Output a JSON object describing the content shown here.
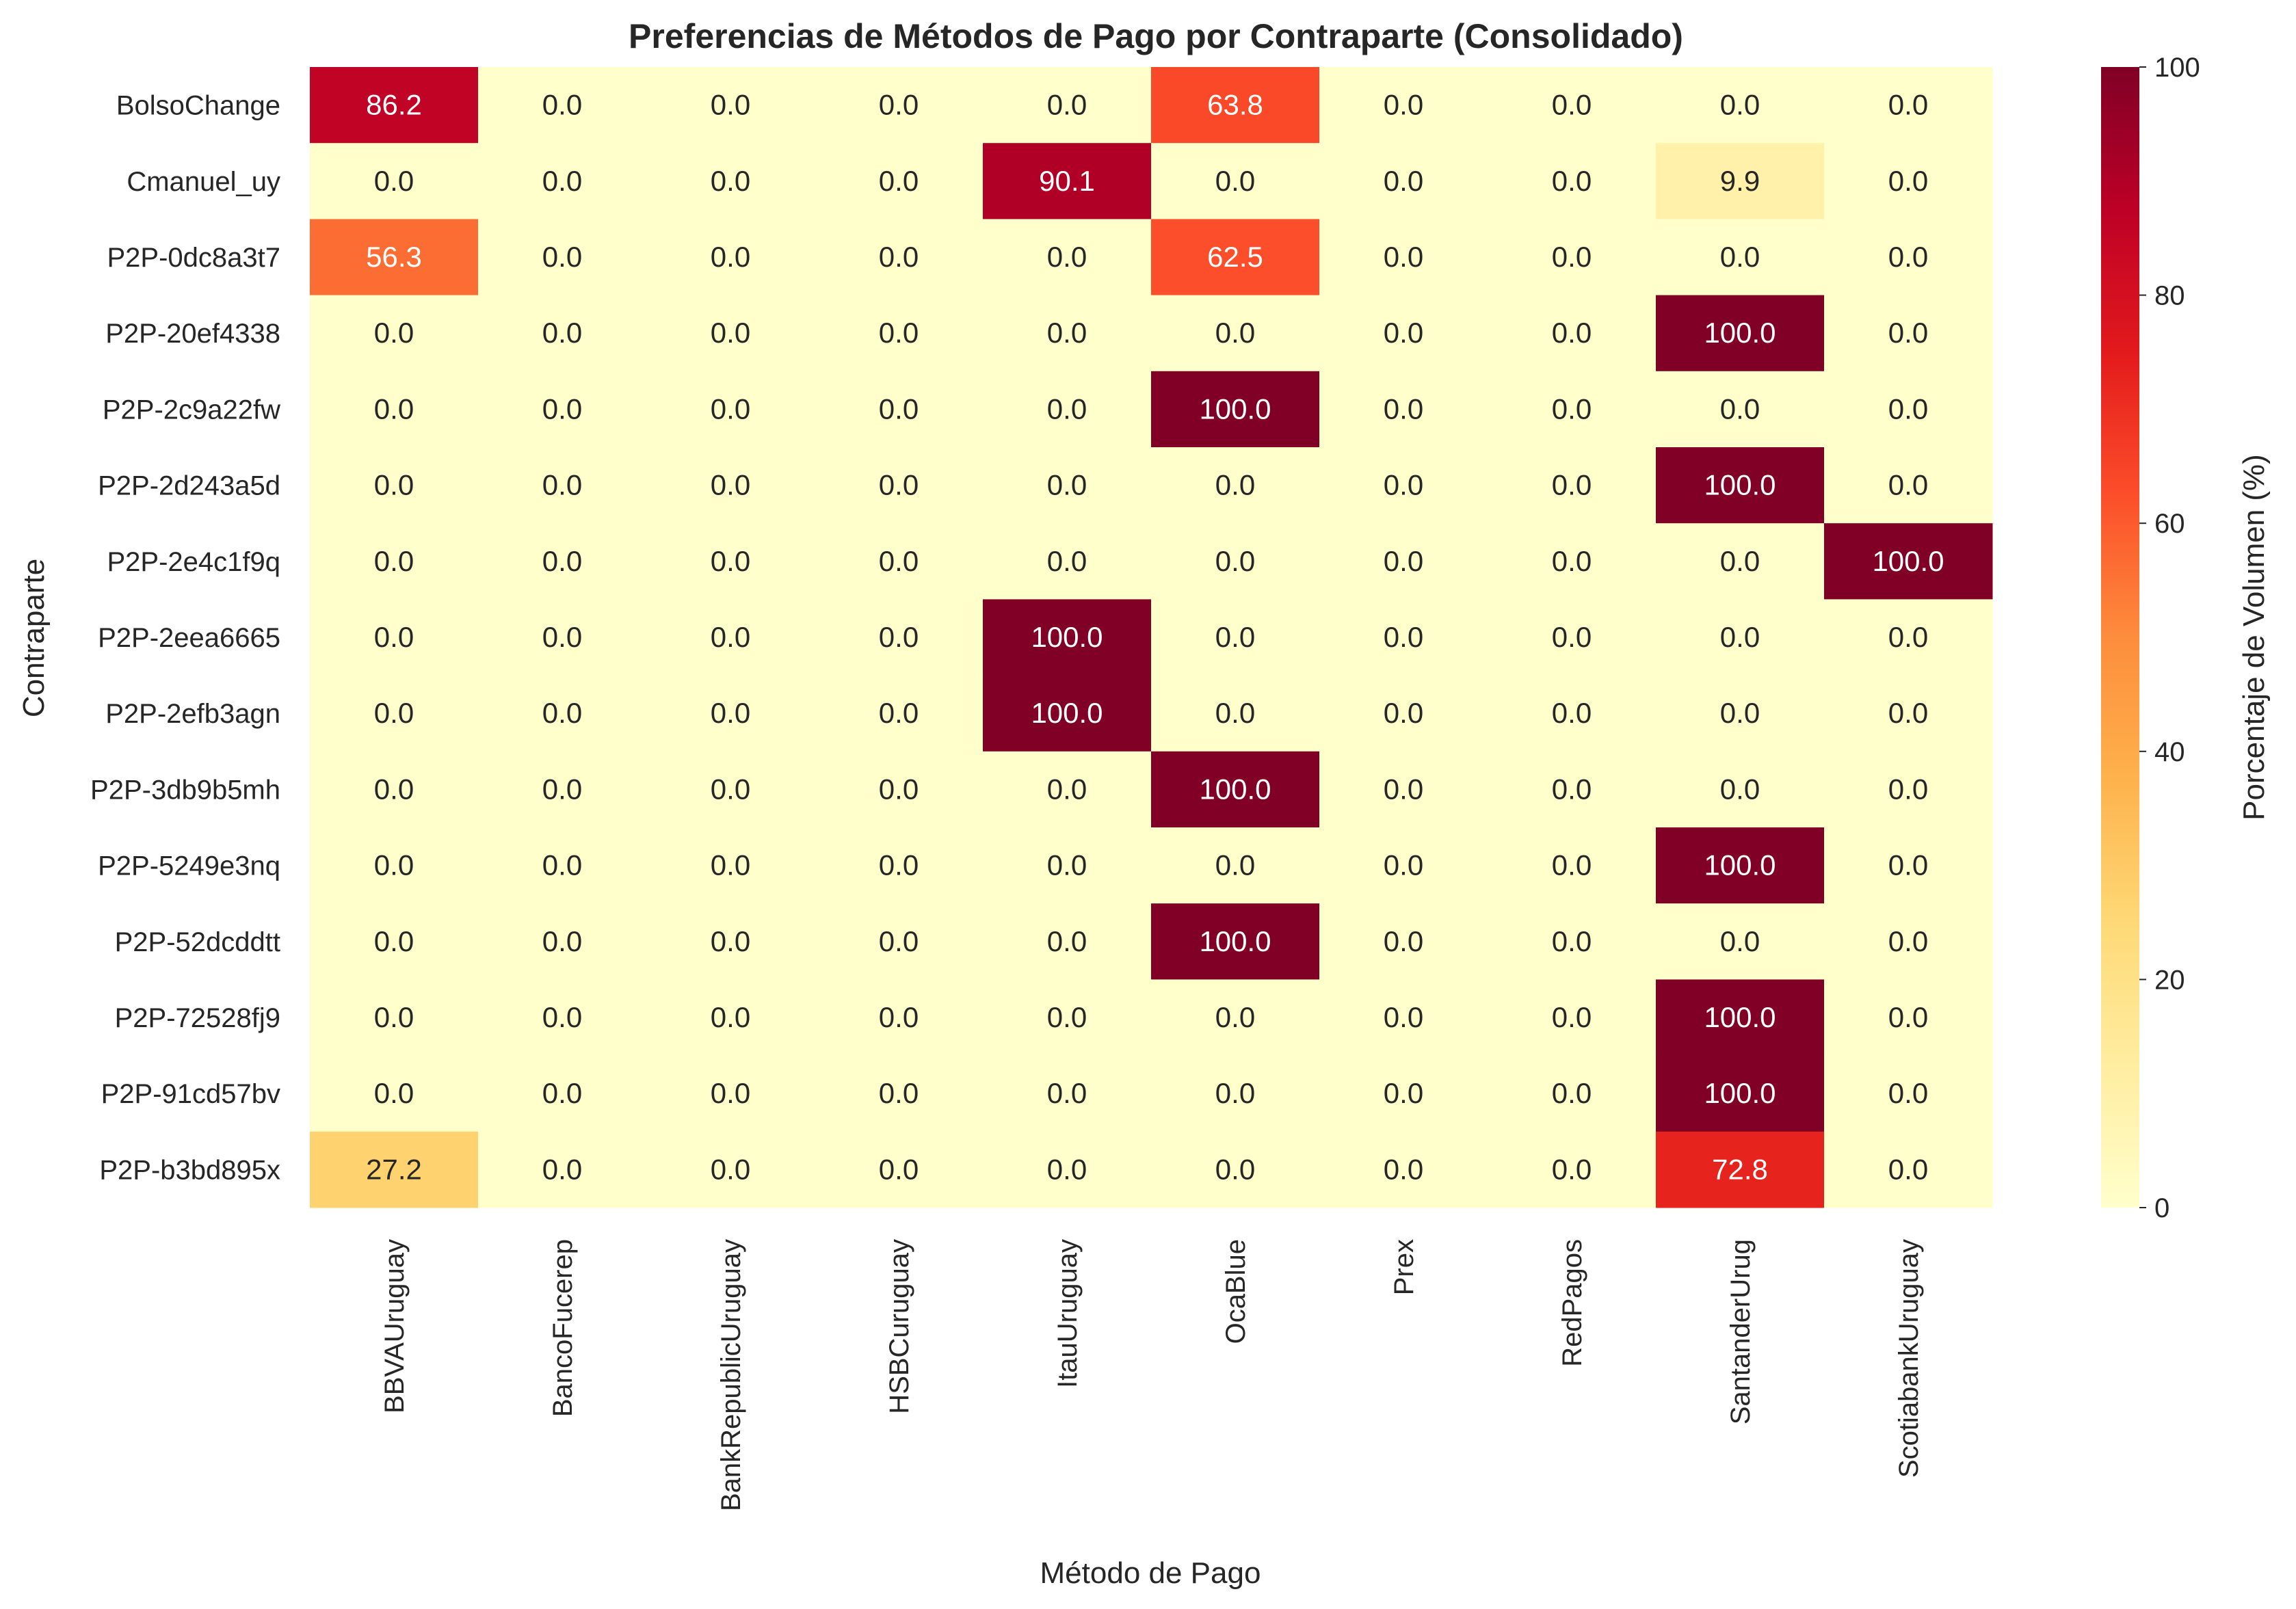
{
  "chart_data": {
    "type": "heatmap",
    "title": "Preferencias de Métodos de Pago por Contraparte (Consolidado)",
    "xlabel": "Método de Pago",
    "ylabel": "Contraparte",
    "colorbar_label": "Porcentaje de Volumen (%)",
    "colormap": "YlOrRd",
    "value_range": [
      0,
      100
    ],
    "colorbar_ticks": [
      "0",
      "20",
      "40",
      "60",
      "80",
      "100"
    ],
    "x_categories": [
      "BBVAUruguay",
      "BancoFucerep",
      "BankRepublicUruguay",
      "HSBCuruguay",
      "ItauUruguay",
      "OcaBlue",
      "Prex",
      "RedPagos",
      "SantanderUrug",
      "ScotiabankUruguay"
    ],
    "y_categories": [
      "BolsoChange",
      "Cmanuel_uy",
      "P2P-0dc8a3t7",
      "P2P-20ef4338",
      "P2P-2c9a22fw",
      "P2P-2d243a5d",
      "P2P-2e4c1f9q",
      "P2P-2eea6665",
      "P2P-2efb3agn",
      "P2P-3db9b5mh",
      "P2P-5249e3nq",
      "P2P-52dcddtt",
      "P2P-72528fj9",
      "P2P-91cd57bv",
      "P2P-b3bd895x"
    ],
    "values": [
      [
        86.2,
        0,
        0,
        0,
        0,
        63.8,
        0,
        0,
        0,
        0
      ],
      [
        0,
        0,
        0,
        0,
        90.1,
        0,
        0,
        0,
        9.9,
        0
      ],
      [
        56.3,
        0,
        0,
        0,
        0,
        62.5,
        0,
        0,
        0,
        0
      ],
      [
        0,
        0,
        0,
        0,
        0,
        0,
        0,
        0,
        100,
        0
      ],
      [
        0,
        0,
        0,
        0,
        0,
        100,
        0,
        0,
        0,
        0
      ],
      [
        0,
        0,
        0,
        0,
        0,
        0,
        0,
        0,
        100,
        0
      ],
      [
        0,
        0,
        0,
        0,
        0,
        0,
        0,
        0,
        0,
        100
      ],
      [
        0,
        0,
        0,
        0,
        100,
        0,
        0,
        0,
        0,
        0
      ],
      [
        0,
        0,
        0,
        0,
        100,
        0,
        0,
        0,
        0,
        0
      ],
      [
        0,
        0,
        0,
        0,
        0,
        100,
        0,
        0,
        0,
        0
      ],
      [
        0,
        0,
        0,
        0,
        0,
        0,
        0,
        0,
        100,
        0
      ],
      [
        0,
        0,
        0,
        0,
        0,
        100,
        0,
        0,
        0,
        0
      ],
      [
        0,
        0,
        0,
        0,
        0,
        0,
        0,
        0,
        100,
        0
      ],
      [
        0,
        0,
        0,
        0,
        0,
        0,
        0,
        0,
        100,
        0
      ],
      [
        27.2,
        0,
        0,
        0,
        0,
        0,
        0,
        0,
        72.8,
        0
      ]
    ],
    "value_format": "0.0"
  }
}
